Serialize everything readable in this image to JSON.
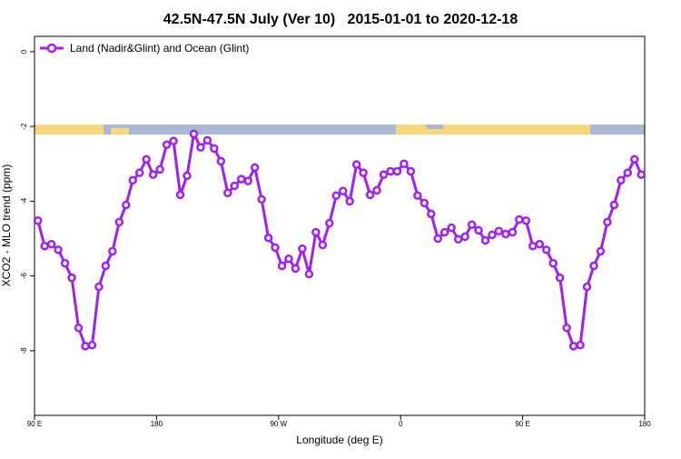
{
  "chart_data": {
    "type": "line",
    "title": "42.5N-47.5N July (Ver 10)   2015-01-01 to 2020-12-18",
    "xlabel": "Longitude (deg E)",
    "ylabel": "XCO2 - MLO trend (ppm)",
    "x": [
      92.5,
      97.5,
      102.5,
      107.5,
      112.5,
      117.5,
      122.5,
      127.5,
      132.5,
      137.5,
      142.5,
      147.5,
      152.5,
      157.5,
      162.5,
      167.5,
      172.5,
      177.5,
      182.5,
      187.5,
      192.5,
      197.5,
      202.5,
      207.5,
      212.5,
      217.5,
      222.5,
      227.5,
      232.5,
      237.5,
      242.5,
      247.5,
      252.5,
      257.5,
      262.5,
      267.5,
      272.5,
      277.5,
      282.5,
      287.5,
      292.5,
      297.5,
      302.5,
      307.5,
      312.5,
      317.5,
      322.5,
      327.5,
      332.5,
      337.5,
      342.5,
      347.5,
      352.5,
      357.5,
      362.5,
      367.5,
      372.5,
      377.5,
      382.5,
      387.5,
      392.5,
      397.5,
      402.5,
      407.5,
      412.5,
      417.5,
      422.5,
      427.5,
      432.5,
      437.5,
      442.5,
      447.5,
      452.5,
      457.5,
      462.5,
      467.5,
      472.5,
      477.5,
      482.5,
      487.5,
      492.5,
      497.5,
      502.5,
      507.5,
      512.5,
      517.5,
      522.5,
      527.5,
      532.5,
      537.5
    ],
    "series": [
      {
        "name": "Land (Nadir&Glint) and Ocean (Glint)",
        "color": "#a020f0",
        "values": [
          -4.52,
          -5.2,
          -5.15,
          -5.3,
          -5.66,
          -6.05,
          -7.39,
          -7.88,
          -7.85,
          -6.29,
          -5.73,
          -5.34,
          -4.56,
          -4.1,
          -3.44,
          -3.24,
          -2.88,
          -3.29,
          -3.15,
          -2.49,
          -2.39,
          -3.83,
          -3.32,
          -2.2,
          -2.56,
          -2.37,
          -2.59,
          -2.93,
          -3.78,
          -3.59,
          -3.41,
          -3.46,
          -3.1,
          -3.95,
          -4.98,
          -5.24,
          -5.73,
          -5.54,
          -5.8,
          -5.27,
          -5.95,
          -4.83,
          -5.17,
          -4.59,
          -3.85,
          -3.73,
          -4.0,
          -3.02,
          -3.24,
          -3.83,
          -3.71,
          -3.29,
          -3.2,
          -3.2,
          -3.0,
          -3.2,
          -3.85,
          -4.05,
          -4.34,
          -5.0,
          -4.83,
          -4.71,
          -5.02,
          -4.95,
          -4.63,
          -4.78,
          -5.05,
          -4.9,
          -4.8,
          -4.88,
          -4.83,
          -4.49,
          -4.52,
          -5.2,
          -5.15,
          -5.3,
          -5.66,
          -6.05,
          -7.39,
          -7.88,
          -7.85,
          -6.29,
          -5.73,
          -5.34,
          -4.56,
          -4.1,
          -3.44,
          -3.24,
          -2.88,
          -3.29
        ]
      }
    ],
    "xlim": [
      90,
      540
    ],
    "xticks": [
      {
        "value": 90,
        "label": "90 E"
      },
      180,
      {
        "value": 270,
        "label": "90 W"
      },
      {
        "value": 360,
        "label": "0"
      },
      {
        "value": 450,
        "label": "90 E"
      },
      {
        "value": 540,
        "label": "180"
      }
    ],
    "ylim": [
      -9.73,
      0.41
    ],
    "yticks": [
      0,
      -2,
      -4,
      -6,
      -8
    ],
    "legend": "top-left",
    "grid": false
  }
}
